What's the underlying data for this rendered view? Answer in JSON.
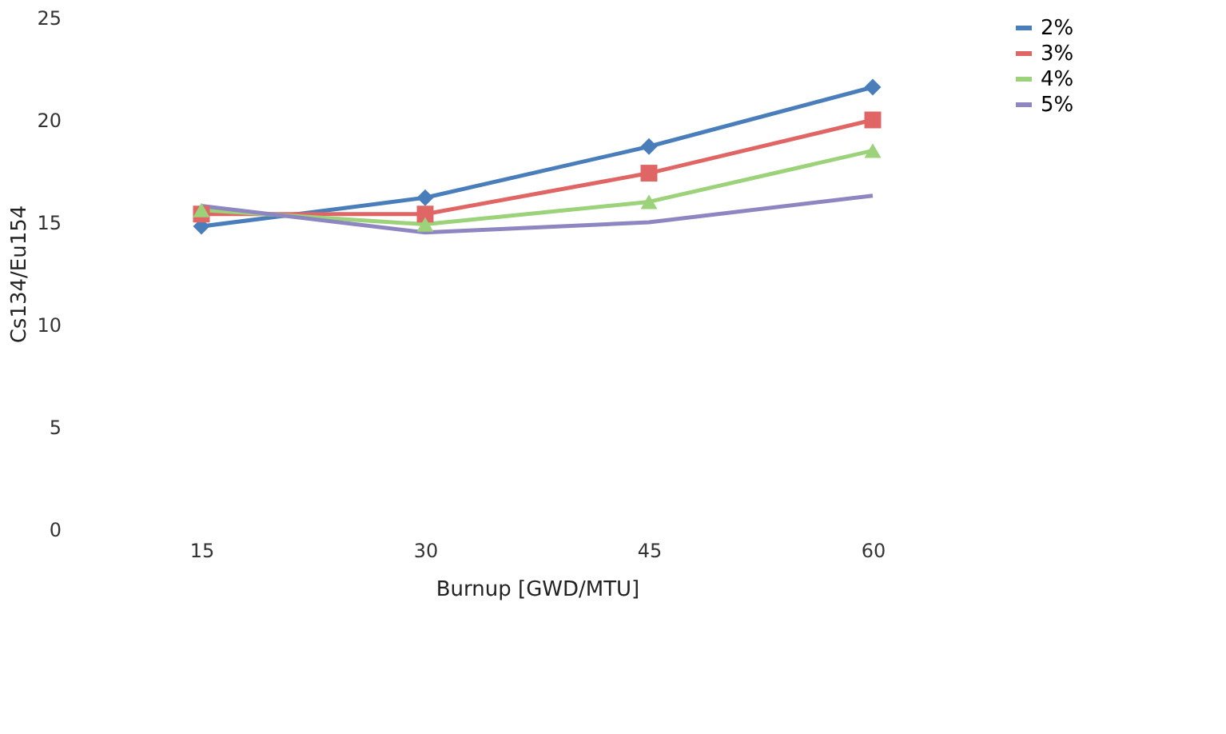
{
  "chart_data": {
    "type": "line",
    "xlabel": "Burnup [GWD/MTU]",
    "ylabel": "Cs134/Eu154",
    "categories": [
      "15",
      "30",
      "45",
      "60"
    ],
    "series": [
      {
        "name": "2%",
        "color": "#4a7ebb",
        "marker": "diamond",
        "values": [
          14.8,
          16.2,
          18.7,
          21.6
        ]
      },
      {
        "name": "3%",
        "color": "#e06666",
        "marker": "square",
        "values": [
          15.4,
          15.4,
          17.4,
          20.0
        ]
      },
      {
        "name": "4%",
        "color": "#9bd27a",
        "marker": "triangle",
        "values": [
          15.6,
          14.9,
          16.0,
          18.5
        ]
      },
      {
        "name": "5%",
        "color": "#8e86c0",
        "marker": "none",
        "values": [
          15.8,
          14.5,
          15.0,
          16.3
        ]
      }
    ],
    "ylim": [
      0,
      25
    ],
    "yticks": [
      0,
      5,
      10,
      15,
      20,
      25
    ],
    "legend": "right",
    "grid": false
  }
}
